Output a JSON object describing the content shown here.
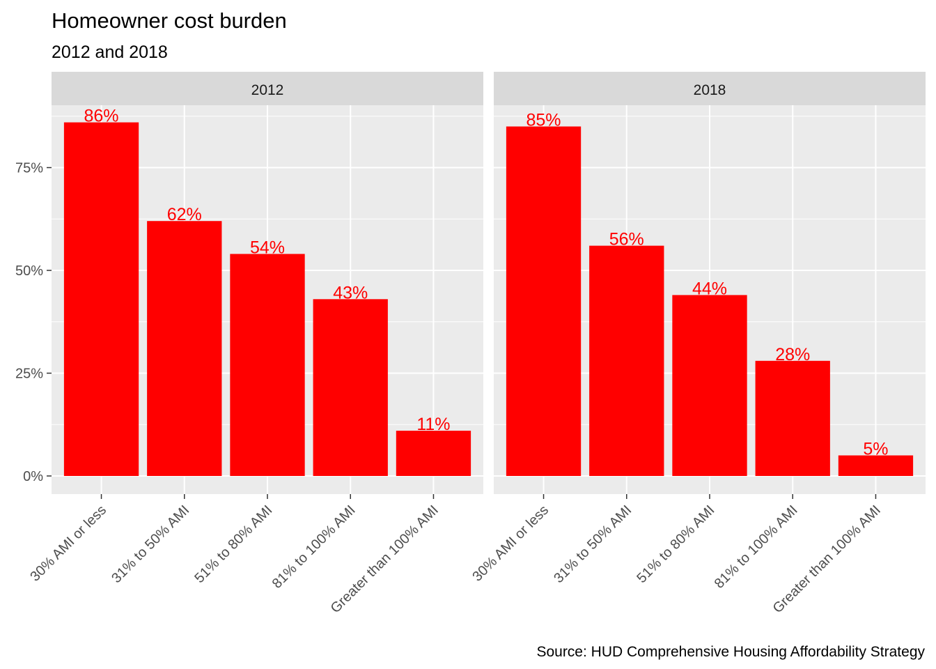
{
  "title": "Homeowner cost burden",
  "subtitle": "2012 and 2018",
  "caption": "Source: HUD Comprehensive Housing Affordability Strategy",
  "colors": {
    "bar": "#ff0000",
    "label": "#ff0000",
    "panel_background": "#ebebeb",
    "strip_background": "#d9d9d9",
    "grid": "#ffffff"
  },
  "chart_data": {
    "type": "bar",
    "facets": [
      "2012",
      "2018"
    ],
    "categories": [
      "30% AMI or less",
      "31% to 50% AMI",
      "51% to 80% AMI",
      "81% to 100% AMI",
      "Greater than 100% AMI"
    ],
    "series": [
      {
        "facet": "2012",
        "values": [
          86,
          62,
          54,
          43,
          11
        ],
        "labels": [
          "86%",
          "62%",
          "54%",
          "43%",
          "11%"
        ]
      },
      {
        "facet": "2018",
        "values": [
          85,
          56,
          44,
          28,
          5
        ],
        "labels": [
          "85%",
          "56%",
          "44%",
          "28%",
          "5%"
        ]
      }
    ],
    "y_ticks": [
      0,
      25,
      50,
      75
    ],
    "y_tick_labels": [
      "0%",
      "25%",
      "50%",
      "75%"
    ],
    "ylim": [
      0,
      90
    ],
    "grid": true,
    "legend": "none",
    "xlabel": "",
    "ylabel": ""
  }
}
